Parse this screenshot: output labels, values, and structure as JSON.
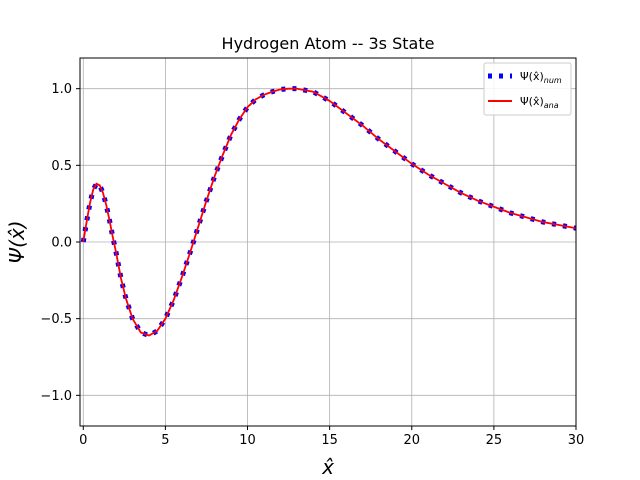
{
  "chart_data": {
    "type": "line",
    "title": "Hydrogen Atom -- 3s State",
    "xlabel": "x̂",
    "ylabel": "Ψ(x̂)",
    "xlim": [
      -0.2,
      30
    ],
    "ylim": [
      -1.2,
      1.2
    ],
    "xticks": [
      0,
      5,
      10,
      15,
      20,
      25,
      30
    ],
    "yticks": [
      -1.0,
      -0.5,
      0.0,
      0.5,
      1.0
    ],
    "xtick_labels": [
      "0",
      "5",
      "10",
      "15",
      "20",
      "25",
      "30"
    ],
    "ytick_labels": [
      "−1.0",
      "−0.5",
      "0.0",
      "0.5",
      "1.0"
    ],
    "grid": true,
    "legend_position": "top-right",
    "series": [
      {
        "name": "Ψ(x̂)num",
        "legend_main": "Ψ(x̂)",
        "legend_sub": "num",
        "style": "dotted-squares",
        "color": "#0000ff",
        "x": [
          0.0,
          0.2,
          0.4,
          0.6,
          0.8,
          1.0,
          1.2,
          1.4,
          1.6,
          1.8,
          2.0,
          2.3,
          2.6,
          3.0,
          3.5,
          4.0,
          4.5,
          5.0,
          5.5,
          6.0,
          6.5,
          7.0,
          7.5,
          8.0,
          8.5,
          9.0,
          9.5,
          10.0,
          10.5,
          11.0,
          11.5,
          12.0,
          12.5,
          13.0,
          13.5,
          14.0,
          15.0,
          16.0,
          17.0,
          18.0,
          19.0,
          20.0,
          21.0,
          22.0,
          23.0,
          24.0,
          25.0,
          26.0,
          27.0,
          28.0,
          29.0,
          30.0
        ],
        "values": [
          0.0,
          0.13,
          0.25,
          0.34,
          0.38,
          0.37,
          0.32,
          0.24,
          0.14,
          0.03,
          -0.07,
          -0.24,
          -0.37,
          -0.5,
          -0.59,
          -0.61,
          -0.58,
          -0.5,
          -0.38,
          -0.23,
          -0.07,
          0.1,
          0.27,
          0.43,
          0.57,
          0.7,
          0.8,
          0.88,
          0.93,
          0.96,
          0.98,
          0.995,
          1.0,
          1.0,
          0.99,
          0.98,
          0.92,
          0.84,
          0.76,
          0.67,
          0.59,
          0.51,
          0.44,
          0.38,
          0.32,
          0.27,
          0.23,
          0.19,
          0.16,
          0.13,
          0.11,
          0.09
        ]
      },
      {
        "name": "Ψ(x̂)ana",
        "legend_main": "Ψ(x̂)",
        "legend_sub": "ana",
        "style": "solid",
        "color": "#ff0000",
        "x": [
          0.0,
          0.2,
          0.4,
          0.6,
          0.8,
          1.0,
          1.2,
          1.4,
          1.6,
          1.8,
          2.0,
          2.3,
          2.6,
          3.0,
          3.5,
          4.0,
          4.5,
          5.0,
          5.5,
          6.0,
          6.5,
          7.0,
          7.5,
          8.0,
          8.5,
          9.0,
          9.5,
          10.0,
          10.5,
          11.0,
          11.5,
          12.0,
          12.5,
          13.0,
          13.5,
          14.0,
          15.0,
          16.0,
          17.0,
          18.0,
          19.0,
          20.0,
          21.0,
          22.0,
          23.0,
          24.0,
          25.0,
          26.0,
          27.0,
          28.0,
          29.0,
          30.0
        ],
        "values": [
          0.0,
          0.13,
          0.25,
          0.34,
          0.38,
          0.37,
          0.32,
          0.24,
          0.14,
          0.03,
          -0.07,
          -0.24,
          -0.37,
          -0.5,
          -0.59,
          -0.61,
          -0.58,
          -0.5,
          -0.38,
          -0.23,
          -0.07,
          0.1,
          0.27,
          0.43,
          0.57,
          0.7,
          0.8,
          0.88,
          0.93,
          0.96,
          0.98,
          0.995,
          1.0,
          1.0,
          0.99,
          0.98,
          0.92,
          0.84,
          0.76,
          0.67,
          0.59,
          0.51,
          0.44,
          0.38,
          0.32,
          0.27,
          0.23,
          0.19,
          0.16,
          0.13,
          0.11,
          0.09
        ]
      }
    ]
  }
}
